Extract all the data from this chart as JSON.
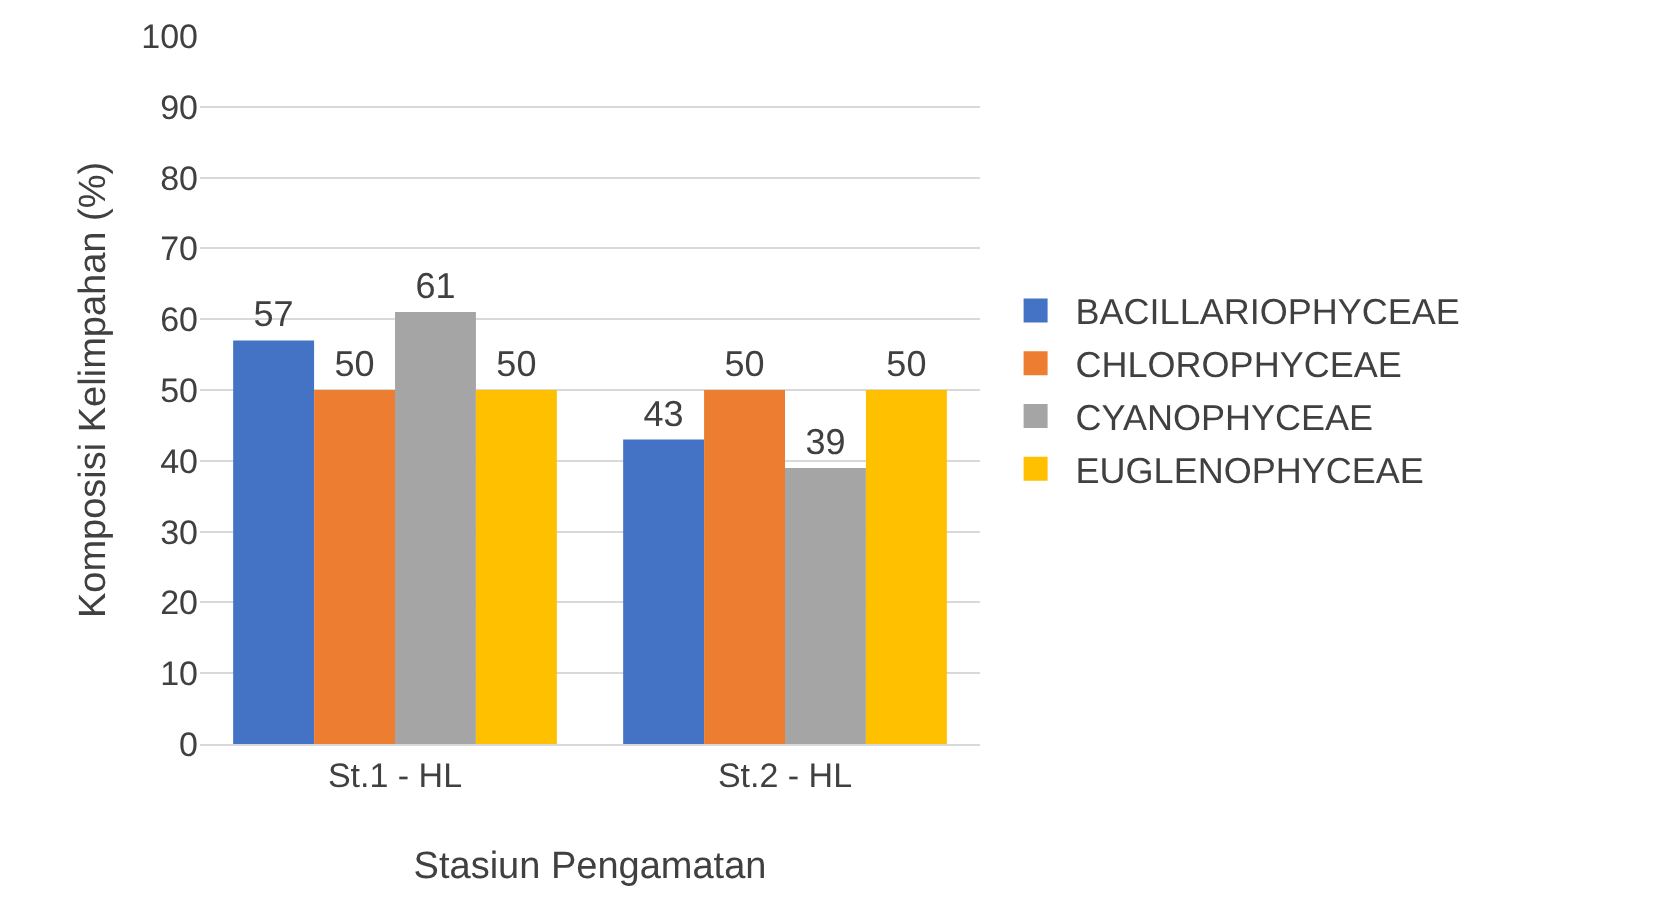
{
  "chart_data": {
    "type": "bar",
    "xlabel": "Stasiun Pengamatan",
    "ylabel": "Komposisi Kelimpahan (%)",
    "categories": [
      "St.1 - HL",
      "St.2 - HL"
    ],
    "series": [
      {
        "name": "BACILLARIOPHYCEAE",
        "color": "#4472c4",
        "values": [
          57,
          43
        ]
      },
      {
        "name": "CHLOROPHYCEAE",
        "color": "#ed7d31",
        "values": [
          50,
          50
        ]
      },
      {
        "name": "CYANOPHYCEAE",
        "color": "#a5a5a5",
        "values": [
          61,
          39
        ]
      },
      {
        "name": "EUGLENOPHYCEAE",
        "color": "#ffc000",
        "values": [
          50,
          50
        ]
      }
    ],
    "ylim": [
      0,
      100
    ],
    "yticks": [
      0,
      10,
      20,
      30,
      40,
      50,
      60,
      70,
      80,
      90,
      100
    ],
    "grid": "y",
    "legend": "right",
    "data_labels": true
  }
}
